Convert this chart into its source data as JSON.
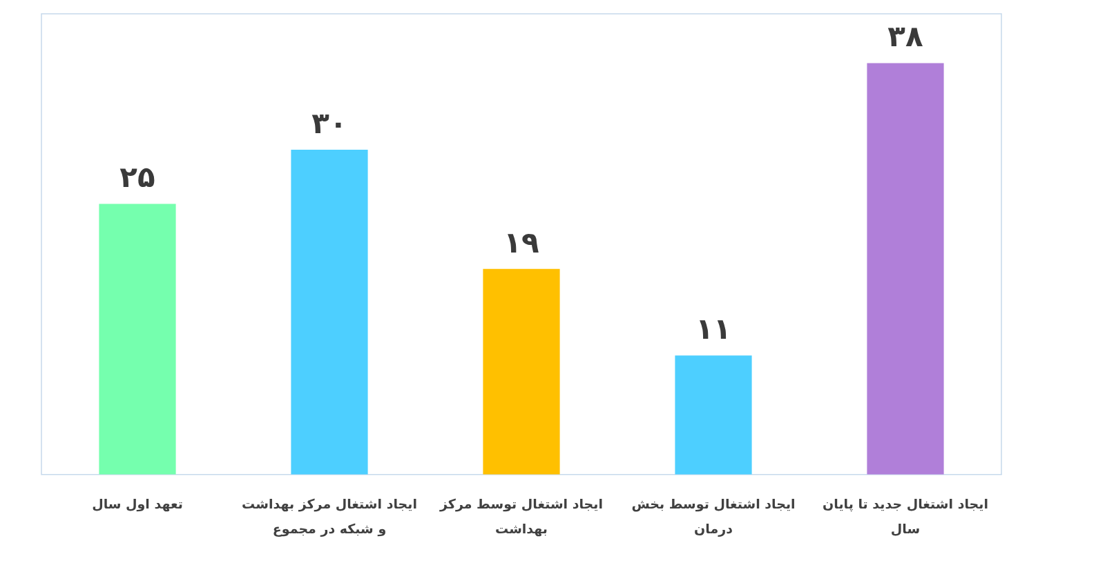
{
  "chart_data": {
    "type": "bar",
    "categories": [
      "تعهد اول سال",
      "ایجاد اشتغال مرکز بهداشت و شبکه در مجموع",
      "ایجاد اشتغال توسط مرکز بهداشت",
      "ایجاد اشتغال توسط بخش درمان",
      "ایجاد اشتغال جدید تا پایان سال"
    ],
    "values": [
      25,
      30,
      19,
      11,
      38
    ],
    "colors": [
      "#75ffae",
      "#4dcfff",
      "#ffc000",
      "#4dcfff",
      "#b07fd9"
    ],
    "value_labels": [
      "۲۵",
      "۳۰",
      "۱۹",
      "۱۱",
      "۳۸"
    ],
    "tick_labels": "x"
  }
}
